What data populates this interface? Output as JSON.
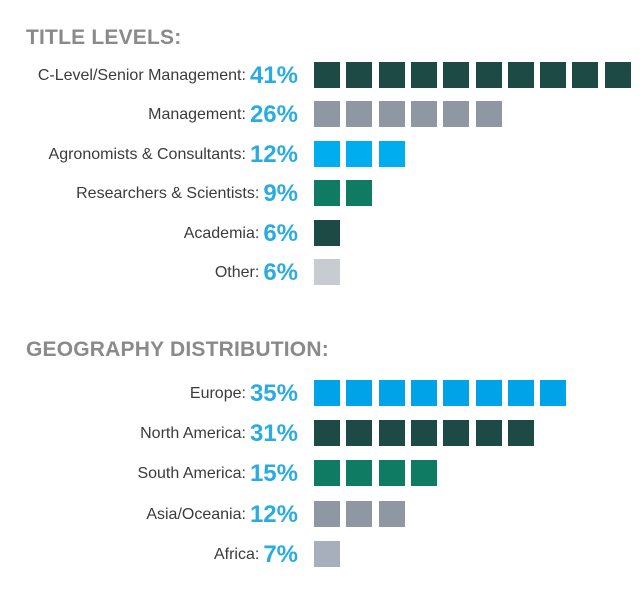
{
  "chart_data": [
    {
      "type": "bar",
      "title": "TITLE LEVELS:",
      "categories": [
        "C-Level/Senior Management",
        "Management",
        "Agronomists & Consultants",
        "Researchers & Scientists",
        "Academia",
        "Other"
      ],
      "values": [
        41,
        26,
        12,
        9,
        6,
        6
      ],
      "value_labels": [
        "41%",
        "26%",
        "12%",
        "9%",
        "6%",
        "6%"
      ],
      "squares": [
        10,
        6,
        3,
        2,
        1,
        1
      ],
      "colors": [
        "#1e4a46",
        "#8f97a3",
        "#00aeef",
        "#0f7b63",
        "#1e4a46",
        "#c8ccd0"
      ],
      "unit": "%"
    },
    {
      "type": "bar",
      "title": "GEOGRAPHY DISTRIBUTION:",
      "categories": [
        "Europe",
        "North America",
        "South America",
        "Asia/Oceania",
        "Africa"
      ],
      "values": [
        35,
        31,
        15,
        12,
        7
      ],
      "value_labels": [
        "35%",
        "31%",
        "15%",
        "12%",
        "7%"
      ],
      "squares": [
        8,
        7,
        4,
        3,
        1
      ],
      "colors": [
        "#00a3e8",
        "#1e4a46",
        "#0f7b63",
        "#8f97a3",
        "#a8afbc"
      ],
      "unit": "%"
    }
  ]
}
